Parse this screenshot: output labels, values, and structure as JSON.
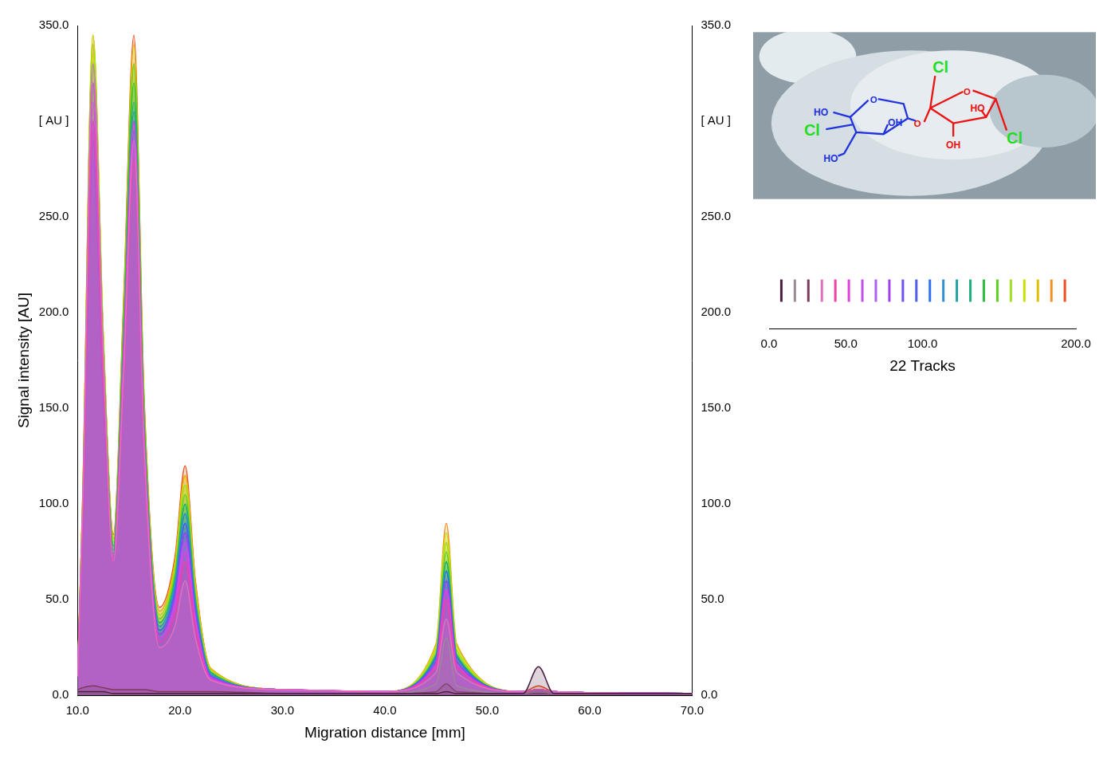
{
  "chart_data": {
    "type": "line",
    "x_label": "Migration distance [mm]",
    "y_label": "Signal intensity [AU]",
    "z_label": "22 Tracks",
    "grid": false,
    "x": [
      10,
      10.5,
      11.5,
      12.5,
      13.5,
      14.5,
      15.5,
      16.5,
      18,
      19.5,
      20.5,
      21.5,
      23,
      30,
      40,
      45,
      46,
      47,
      53.5,
      55,
      56.5,
      70
    ],
    "xlim": [
      10,
      70
    ],
    "xticks": [
      {
        "value": 10,
        "label": "10.0"
      },
      {
        "value": 20,
        "label": "20.0"
      },
      {
        "value": 30,
        "label": "30.0"
      },
      {
        "value": 40,
        "label": "40.0"
      },
      {
        "value": 50,
        "label": "50.0"
      },
      {
        "value": 60,
        "label": "60.0"
      },
      {
        "value": 70,
        "label": "70.0"
      }
    ],
    "ylim": [
      0,
      350
    ],
    "yticks": [
      {
        "value": 0,
        "label": "0.0"
      },
      {
        "value": 50,
        "label": "50.0"
      },
      {
        "value": 100,
        "label": "100.0"
      },
      {
        "value": 150,
        "label": "150.0"
      },
      {
        "value": 200,
        "label": "200.0"
      },
      {
        "value": 250,
        "label": "250.0"
      },
      {
        "value": 300,
        "label": "[ AU ]"
      },
      {
        "value": 350,
        "label": "350.0"
      }
    ],
    "y2lim": [
      0,
      350
    ],
    "y2ticks": [
      {
        "value": 0,
        "label": "0.0"
      },
      {
        "value": 50,
        "label": "50.0"
      },
      {
        "value": 100,
        "label": "100.0"
      },
      {
        "value": 150,
        "label": "150.0"
      },
      {
        "value": 200,
        "label": "200.0"
      },
      {
        "value": 250,
        "label": "250.0"
      },
      {
        "value": 300,
        "label": "[ AU ]"
      },
      {
        "value": 350,
        "label": "350.0"
      }
    ],
    "zlim": [
      0,
      200
    ],
    "zticks": [
      {
        "value": 0,
        "label": "0.0"
      },
      {
        "value": 50,
        "label": "50.0"
      },
      {
        "value": 100,
        "label": "100.0"
      },
      {
        "value": 200,
        "label": "200.0"
      }
    ],
    "series": [
      {
        "color": "#4a2040",
        "position": 8,
        "values": [
          2,
          2,
          2,
          2,
          1,
          1,
          1,
          1,
          1,
          1,
          1,
          1,
          1,
          1,
          1,
          1,
          2,
          1,
          1,
          15,
          1,
          1
        ]
      },
      {
        "color": "#9a8a96",
        "position": 16.8,
        "values": [
          2,
          2,
          2,
          2,
          1,
          1,
          1,
          1,
          1,
          1,
          1,
          1,
          1,
          1,
          1,
          6,
          30,
          5,
          1,
          2,
          1,
          1
        ]
      },
      {
        "color": "#7a3a5a",
        "position": 25.6,
        "values": [
          3,
          4,
          5,
          4,
          3,
          3,
          3,
          3,
          2,
          2,
          2,
          2,
          2,
          1,
          1,
          2,
          6,
          2,
          1,
          1,
          1,
          1
        ]
      },
      {
        "color": "#e070c0",
        "position": 34.4,
        "values": [
          10,
          100,
          330,
          180,
          70,
          170,
          290,
          130,
          25,
          36,
          60,
          30,
          8,
          3,
          2,
          12,
          40,
          12,
          2,
          3,
          2,
          1
        ]
      },
      {
        "color": "#f040a0",
        "position": 43.2,
        "values": [
          10,
          90,
          300,
          165,
          70,
          165,
          280,
          125,
          28,
          42,
          70,
          35,
          8,
          3,
          2,
          15,
          50,
          15,
          2,
          3,
          2,
          1
        ]
      },
      {
        "color": "#e040e0",
        "position": 52,
        "values": [
          10,
          96,
          320,
          176,
          72,
          180,
          300,
          135,
          30,
          45,
          75,
          38,
          9,
          3,
          2,
          16,
          55,
          16,
          2,
          3,
          2,
          1
        ]
      },
      {
        "color": "#c050e8",
        "position": 60.8,
        "values": [
          10,
          93,
          310,
          170,
          70,
          175,
          290,
          130,
          30,
          48,
          80,
          40,
          9,
          3,
          2,
          16,
          55,
          16,
          2,
          3,
          2,
          1
        ]
      },
      {
        "color": "#b060f0",
        "position": 69.6,
        "values": [
          10,
          90,
          300,
          165,
          72,
          180,
          300,
          135,
          30,
          48,
          80,
          40,
          9,
          3,
          2,
          15,
          50,
          15,
          2,
          3,
          2,
          1
        ]
      },
      {
        "color": "#a040f0",
        "position": 78.4,
        "values": [
          10,
          88,
          295,
          162,
          70,
          170,
          285,
          128,
          32,
          51,
          85,
          42,
          10,
          3,
          2,
          18,
          60,
          18,
          2,
          3,
          2,
          1
        ]
      },
      {
        "color": "#7050f0",
        "position": 87.2,
        "values": [
          10,
          87,
          290,
          160,
          70,
          174,
          290,
          130,
          32,
          51,
          85,
          42,
          10,
          3,
          2,
          16,
          55,
          16,
          2,
          3,
          2,
          1
        ]
      },
      {
        "color": "#5060e8",
        "position": 96,
        "values": [
          10,
          90,
          300,
          165,
          72,
          177,
          295,
          133,
          34,
          54,
          90,
          45,
          10,
          3,
          2,
          18,
          60,
          18,
          2,
          3,
          2,
          1
        ]
      },
      {
        "color": "#3070f0",
        "position": 104.8,
        "values": [
          10,
          87,
          290,
          160,
          72,
          180,
          300,
          135,
          34,
          54,
          90,
          45,
          10,
          3,
          2,
          20,
          65,
          20,
          2,
          3,
          2,
          1
        ]
      },
      {
        "color": "#3090d0",
        "position": 113.6,
        "values": [
          10,
          84,
          280,
          154,
          70,
          174,
          290,
          130,
          36,
          57,
          95,
          48,
          11,
          3,
          2,
          18,
          60,
          18,
          2,
          3,
          2,
          1
        ]
      },
      {
        "color": "#20a0a0",
        "position": 122.4,
        "values": [
          10,
          90,
          300,
          165,
          74,
          183,
          305,
          137,
          36,
          57,
          95,
          48,
          11,
          3,
          2,
          20,
          65,
          20,
          2,
          3,
          2,
          1
        ]
      },
      {
        "color": "#20b080",
        "position": 131.2,
        "values": [
          10,
          96,
          320,
          176,
          76,
          186,
          310,
          140,
          38,
          60,
          100,
          50,
          12,
          3,
          2,
          21,
          70,
          21,
          2,
          3,
          2,
          1
        ]
      },
      {
        "color": "#30c040",
        "position": 140,
        "values": [
          10,
          99,
          330,
          182,
          78,
          192,
          320,
          144,
          38,
          60,
          100,
          50,
          12,
          3,
          2,
          21,
          70,
          21,
          2,
          3,
          2,
          1
        ]
      },
      {
        "color": "#60d020",
        "position": 148.8,
        "values": [
          10,
          96,
          320,
          176,
          78,
          198,
          330,
          148,
          40,
          63,
          105,
          52,
          12,
          3,
          2,
          22,
          75,
          22,
          2,
          3,
          2,
          1
        ]
      },
      {
        "color": "#a0e020",
        "position": 157.6,
        "values": [
          10,
          102,
          340,
          187,
          80,
          192,
          320,
          144,
          42,
          66,
          110,
          55,
          13,
          3,
          2,
          24,
          80,
          24,
          2,
          3,
          2,
          1
        ]
      },
      {
        "color": "#c8e000",
        "position": 166.4,
        "values": [
          10,
          104,
          345,
          190,
          80,
          198,
          330,
          148,
          42,
          66,
          110,
          55,
          13,
          3,
          2,
          26,
          85,
          26,
          2,
          3,
          2,
          1
        ]
      },
      {
        "color": "#e0c000",
        "position": 175.2,
        "values": [
          10,
          100,
          335,
          184,
          82,
          204,
          340,
          153,
          44,
          69,
          115,
          58,
          14,
          3,
          2,
          24,
          80,
          24,
          2,
          3,
          2,
          1
        ]
      },
      {
        "color": "#f09020",
        "position": 184,
        "values": [
          10,
          104,
          345,
          190,
          82,
          198,
          330,
          148,
          44,
          69,
          115,
          58,
          14,
          3,
          2,
          27,
          90,
          27,
          2,
          3,
          2,
          1
        ]
      },
      {
        "color": "#f05020",
        "position": 192.8,
        "values": [
          10,
          102,
          340,
          187,
          84,
          207,
          345,
          155,
          46,
          72,
          120,
          60,
          14,
          3,
          2,
          18,
          60,
          18,
          2,
          5,
          2,
          1
        ]
      }
    ]
  },
  "inset": {
    "labels": [
      {
        "text": "Cl",
        "color": "#22dd22"
      },
      {
        "text": "HO",
        "color": "#2233dd"
      },
      {
        "text": "Cl",
        "color": "#22dd22"
      },
      {
        "text": "OH",
        "color": "#2233dd"
      },
      {
        "text": "HO",
        "color": "#2233dd"
      },
      {
        "text": "O",
        "color": "#2233dd"
      },
      {
        "text": "O",
        "color": "#ee1111"
      },
      {
        "text": "HO",
        "color": "#ee1111"
      },
      {
        "text": "OH",
        "color": "#ee1111"
      },
      {
        "text": "Cl",
        "color": "#22dd22"
      },
      {
        "text": "O",
        "color": "#ee1111"
      }
    ]
  }
}
